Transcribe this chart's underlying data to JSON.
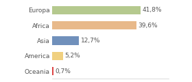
{
  "categories": [
    "Europa",
    "Africa",
    "Asia",
    "America",
    "Oceania"
  ],
  "values": [
    41.8,
    39.6,
    12.7,
    5.2,
    0.7
  ],
  "labels": [
    "41,8%",
    "39,6%",
    "12,7%",
    "5,2%",
    "0,7%"
  ],
  "bar_colors": [
    "#b5c98e",
    "#e8b98a",
    "#7090bb",
    "#f0d080",
    "#dd4444"
  ],
  "background_color": "#ffffff",
  "xlim": [
    0,
    55
  ],
  "label_fontsize": 6.5,
  "tick_fontsize": 6.5,
  "bar_height": 0.55
}
